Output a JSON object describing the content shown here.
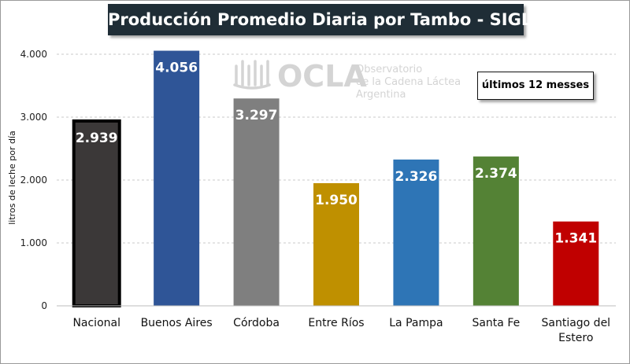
{
  "chart_data": {
    "type": "bar",
    "title": "Producción Promedio Diaria por Tambo - SIGLeA",
    "ylabel": "litros de leche por día",
    "xlabel": "",
    "ylim": [
      0,
      4000
    ],
    "yticks": [
      0,
      1000,
      2000,
      3000,
      4000
    ],
    "ytick_labels": [
      "0",
      "1.000",
      "2.000",
      "3.000",
      "4.000"
    ],
    "grid": true,
    "annotation": "últimos 12 messes",
    "categories": [
      [
        "Nacional"
      ],
      [
        "Buenos Aires"
      ],
      [
        "Córdoba"
      ],
      [
        "Entre Ríos"
      ],
      [
        "La Pampa"
      ],
      [
        "Santa Fe"
      ],
      [
        "Santiago del",
        "Estero"
      ]
    ],
    "values": [
      2939,
      4056,
      3297,
      1950,
      2326,
      2374,
      1341
    ],
    "value_labels": [
      "2.939",
      "4.056",
      "3.297",
      "1.950",
      "2.326",
      "2.374",
      "1.341"
    ],
    "colors": [
      "#3b3838",
      "#2f5597",
      "#7f7f7f",
      "#bf9000",
      "#2e75b6",
      "#548235",
      "#c00000"
    ]
  },
  "watermark": {
    "name": "OCLA",
    "lines": [
      "Observatorio",
      "de la Cadena Láctea",
      "Argentina"
    ]
  }
}
